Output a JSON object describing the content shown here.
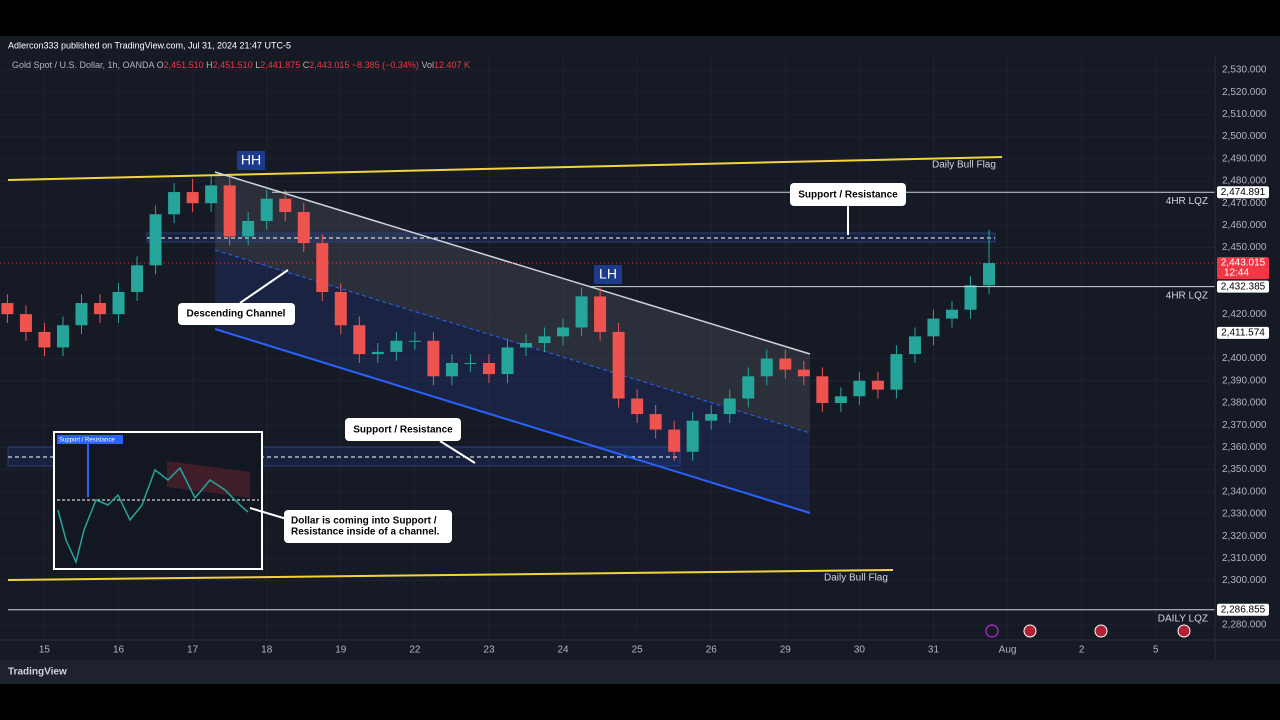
{
  "header": {
    "publisher": "Adlercon333 published on TradingView.com, Jul 31, 2024 21:47 UTC-5",
    "brand": "TradingView"
  },
  "chart_data": {
    "type": "candlestick",
    "symbol": "Gold Spot / U.S. Dollar, 1h, OANDA",
    "legend": [
      {
        "key": "O",
        "value": "2,451.510"
      },
      {
        "key": "H",
        "value": "2,451.510"
      },
      {
        "key": "L",
        "value": "2,441.875"
      },
      {
        "key": "C",
        "value": "2,443.015"
      },
      {
        "key": "Vol",
        "value": "12.407 K"
      }
    ],
    "change": "−8.385 (−0.34%)",
    "up_color": "#26a69a",
    "down_color": "#ef5350",
    "grid": true,
    "x": [
      -0.5,
      -0.25,
      0,
      0.25,
      0.5,
      0.75,
      1,
      1.25,
      1.5,
      1.75,
      2,
      2.25,
      2.5,
      2.75,
      3,
      3.25,
      3.5,
      3.75,
      4,
      4.25,
      4.5,
      4.75,
      5,
      5.25,
      5.5,
      5.75,
      6,
      6.25,
      6.5,
      6.75,
      7,
      7.25,
      7.5,
      7.75,
      8,
      8.25,
      8.5,
      8.75,
      9,
      9.25,
      9.5,
      9.75,
      10,
      10.25,
      10.5,
      10.75,
      11,
      11.25,
      11.5,
      11.75,
      12,
      12.25,
      12.5,
      12.75
    ],
    "open": [
      2425,
      2420,
      2412,
      2405,
      2415,
      2425,
      2420,
      2430,
      2442,
      2465,
      2475,
      2470,
      2478,
      2455,
      2462,
      2472,
      2466,
      2452,
      2430,
      2415,
      2402,
      2403,
      2408,
      2408,
      2392,
      2398,
      2398,
      2393,
      2405,
      2407,
      2410,
      2414,
      2428,
      2412,
      2382,
      2375,
      2368,
      2358,
      2372,
      2375,
      2382,
      2392,
      2400,
      2395,
      2392,
      2380,
      2383,
      2390,
      2386,
      2402,
      2410,
      2418,
      2422,
      2433
    ],
    "high": [
      2429,
      2424,
      2416,
      2419,
      2429,
      2429,
      2434,
      2446,
      2469,
      2479,
      2481,
      2482,
      2482,
      2466,
      2476,
      2476,
      2470,
      2456,
      2434,
      2419,
      2407,
      2412,
      2412,
      2412,
      2402,
      2402,
      2402,
      2409,
      2411,
      2414,
      2418,
      2432,
      2432,
      2416,
      2386,
      2379,
      2372,
      2376,
      2379,
      2386,
      2396,
      2404,
      2404,
      2399,
      2396,
      2387,
      2394,
      2394,
      2406,
      2414,
      2422,
      2426,
      2437,
      2458
    ],
    "low": [
      2416,
      2408,
      2401,
      2401,
      2411,
      2416,
      2416,
      2426,
      2438,
      2461,
      2466,
      2466,
      2451,
      2451,
      2458,
      2462,
      2448,
      2426,
      2411,
      2398,
      2398,
      2399,
      2404,
      2388,
      2388,
      2394,
      2389,
      2389,
      2401,
      2403,
      2406,
      2410,
      2408,
      2378,
      2371,
      2364,
      2354,
      2354,
      2368,
      2371,
      2378,
      2388,
      2391,
      2388,
      2376,
      2376,
      2379,
      2382,
      2382,
      2398,
      2406,
      2414,
      2418,
      2429
    ],
    "close": [
      2420,
      2412,
      2405,
      2415,
      2425,
      2420,
      2430,
      2442,
      2465,
      2475,
      2470,
      2478,
      2455,
      2462,
      2472,
      2466,
      2452,
      2430,
      2415,
      2402,
      2403,
      2408,
      2408,
      2392,
      2398,
      2398,
      2393,
      2405,
      2407,
      2410,
      2414,
      2428,
      2412,
      2382,
      2375,
      2368,
      2358,
      2372,
      2375,
      2382,
      2392,
      2400,
      2395,
      2392,
      2380,
      2383,
      2390,
      2386,
      2402,
      2410,
      2418,
      2422,
      2433,
      2443.015
    ],
    "xlim": [
      -0.6,
      15.8
    ],
    "xticks": [
      {
        "value": 0,
        "label": "15"
      },
      {
        "value": 1,
        "label": "16"
      },
      {
        "value": 2,
        "label": "17"
      },
      {
        "value": 3,
        "label": "18"
      },
      {
        "value": 4,
        "label": "19"
      },
      {
        "value": 5,
        "label": "22"
      },
      {
        "value": 6,
        "label": "23"
      },
      {
        "value": 7,
        "label": "24"
      },
      {
        "value": 8,
        "label": "25"
      },
      {
        "value": 9,
        "label": "26"
      },
      {
        "value": 10,
        "label": "29"
      },
      {
        "value": 11,
        "label": "30"
      },
      {
        "value": 12,
        "label": "31"
      },
      {
        "value": 13,
        "label": "Aug"
      },
      {
        "value": 14,
        "label": "2"
      },
      {
        "value": 15,
        "label": "5"
      }
    ],
    "ylim": [
      2273.2,
      2536.3
    ],
    "yticks": [
      {
        "value": 2530,
        "label": "2,530.000"
      },
      {
        "value": 2520,
        "label": "2,520.000"
      },
      {
        "value": 2510,
        "label": "2,510.000"
      },
      {
        "value": 2500,
        "label": "2,500.000"
      },
      {
        "value": 2490,
        "label": "2,490.000"
      },
      {
        "value": 2480,
        "label": "2,480.000"
      },
      {
        "value": 2470,
        "label": "2,470.000"
      },
      {
        "value": 2460,
        "label": "2,460.000"
      },
      {
        "value": 2450,
        "label": "2,450.000"
      },
      {
        "value": 2420,
        "label": "2,420.000"
      },
      {
        "value": 2400,
        "label": "2,400.000"
      },
      {
        "value": 2390,
        "label": "2,390.000"
      },
      {
        "value": 2380,
        "label": "2,380.000"
      },
      {
        "value": 2370,
        "label": "2,370.000"
      },
      {
        "value": 2360,
        "label": "2,360.000"
      },
      {
        "value": 2350,
        "label": "2,350.000"
      },
      {
        "value": 2340,
        "label": "2,340.000"
      },
      {
        "value": 2330,
        "label": "2,330.000"
      },
      {
        "value": 2320,
        "label": "2,320.000"
      },
      {
        "value": 2310,
        "label": "2,310.000"
      },
      {
        "value": 2300,
        "label": "2,300.000"
      },
      {
        "value": 2280,
        "label": "2,280.000"
      }
    ],
    "price_lines": [
      {
        "value": 2474.891,
        "label": "2,474.891",
        "name": "4HR LQZ"
      },
      {
        "value": 2432.385,
        "label": "2,432.385",
        "name": "4HR LQZ"
      },
      {
        "value": 2411.574,
        "label": "2,411.574"
      },
      {
        "value": 2286.855,
        "label": "2,286.855",
        "name": "DAILY LQZ"
      }
    ],
    "last_price": {
      "value": 2443.015,
      "label": "2,443.015",
      "countdown": "12:44"
    },
    "annotations": {
      "hh": "HH",
      "lh": "LH",
      "bull_flag_upper": "Daily Bull Flag",
      "bull_flag_lower": "Daily Bull Flag",
      "sr_upper": "Support / Resistance",
      "sr_lower": "Support / Resistance",
      "channel": "Descending Channel",
      "dollar_note_1": "Dollar is coming into Support /",
      "dollar_note_2": "Resistance inside of a channel.",
      "inset_label": "Support / Resistance"
    }
  }
}
